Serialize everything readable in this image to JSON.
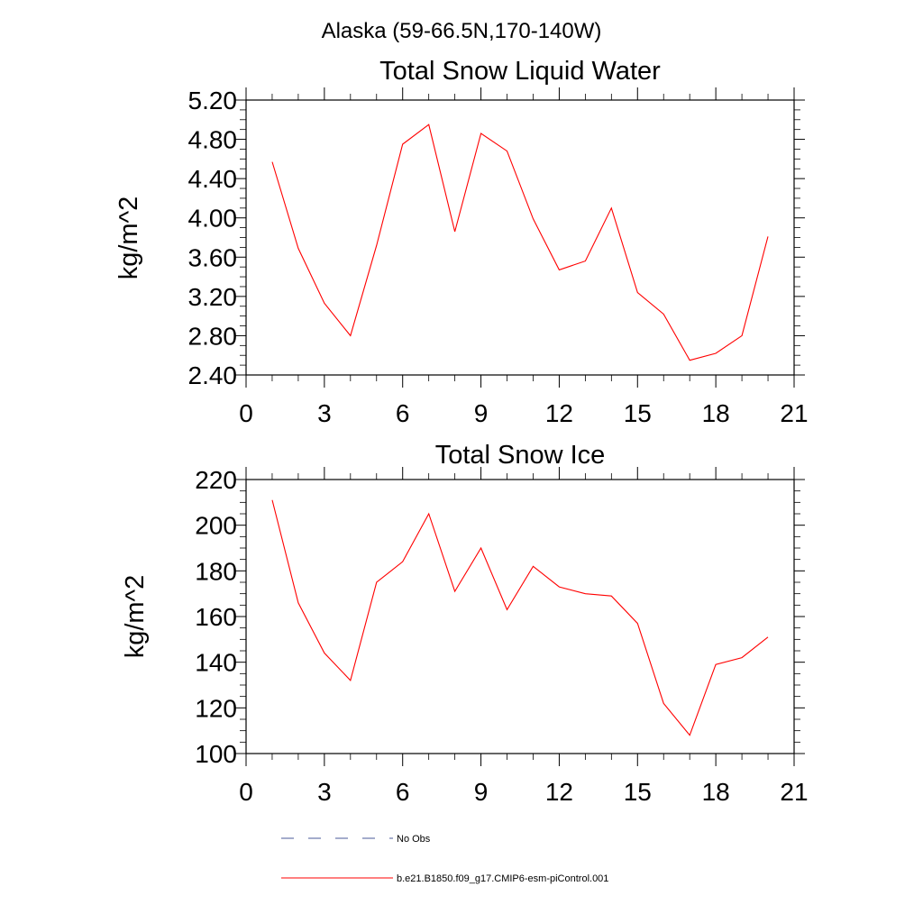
{
  "figure": {
    "main_title": "Alaska (59-66.5N,170-140W)"
  },
  "chart_data": [
    {
      "type": "line",
      "title": "Total Snow Liquid Water",
      "xlabel": "",
      "ylabel": "kg/m^2",
      "xlim": [
        0,
        21
      ],
      "ylim": [
        2.4,
        5.2
      ],
      "x_ticks": [
        "0",
        "3",
        "6",
        "9",
        "12",
        "15",
        "18",
        "21"
      ],
      "y_ticks": [
        "2.40",
        "2.80",
        "3.20",
        "3.60",
        "4.00",
        "4.40",
        "4.80",
        "5.20"
      ],
      "series": [
        {
          "name": "b.e21.B1850.f09_g17.CMIP6-esm-piControl.001",
          "color": "#ff0000",
          "x": [
            1,
            2,
            3,
            4,
            5,
            6,
            7,
            8,
            9,
            10,
            11,
            12,
            13,
            14,
            15,
            16,
            17,
            18,
            19,
            20
          ],
          "values": [
            4.57,
            3.69,
            3.13,
            2.8,
            3.72,
            4.75,
            4.95,
            3.86,
            4.86,
            4.68,
            3.99,
            3.47,
            3.56,
            4.1,
            3.24,
            3.02,
            2.55,
            2.62,
            2.8,
            3.81
          ]
        }
      ]
    },
    {
      "type": "line",
      "title": "Total Snow Ice",
      "xlabel": "",
      "ylabel": "kg/m^2",
      "xlim": [
        0,
        21
      ],
      "ylim": [
        100,
        220
      ],
      "x_ticks": [
        "0",
        "3",
        "6",
        "9",
        "12",
        "15",
        "18",
        "21"
      ],
      "y_ticks": [
        "100",
        "120",
        "140",
        "160",
        "180",
        "200",
        "220"
      ],
      "series": [
        {
          "name": "b.e21.B1850.f09_g17.CMIP6-esm-piControl.001",
          "color": "#ff0000",
          "x": [
            1,
            2,
            3,
            4,
            5,
            6,
            7,
            8,
            9,
            10,
            11,
            12,
            13,
            14,
            15,
            16,
            17,
            18,
            19,
            20
          ],
          "values": [
            211,
            166,
            144,
            132,
            175,
            184,
            205,
            171,
            190,
            163,
            182,
            173,
            170,
            169,
            157,
            122,
            108,
            139,
            142,
            151
          ]
        }
      ]
    }
  ],
  "legend": [
    {
      "label": "No Obs",
      "style": "dashed",
      "color": "#4a5a9a"
    },
    {
      "label": "b.e21.B1850.f09_g17.CMIP6-esm-piControl.001",
      "style": "solid",
      "color": "#ff0000"
    }
  ]
}
